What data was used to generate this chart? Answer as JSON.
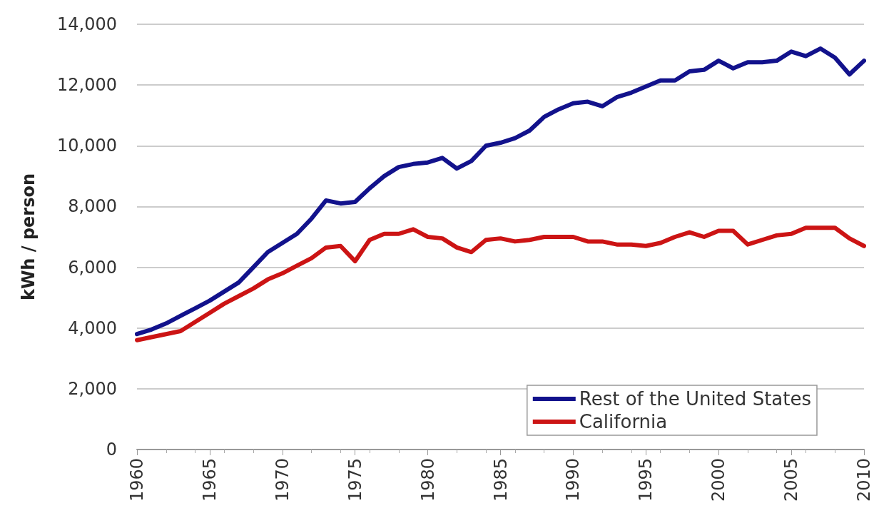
{
  "chart_data": {
    "type": "line",
    "ylabel": "kWh / person",
    "x": [
      1960,
      1961,
      1962,
      1963,
      1964,
      1965,
      1966,
      1967,
      1968,
      1969,
      1970,
      1971,
      1972,
      1973,
      1974,
      1975,
      1976,
      1977,
      1978,
      1979,
      1980,
      1981,
      1982,
      1983,
      1984,
      1985,
      1986,
      1987,
      1988,
      1989,
      1990,
      1991,
      1992,
      1993,
      1994,
      1995,
      1996,
      1997,
      1998,
      1999,
      2000,
      2001,
      2002,
      2003,
      2004,
      2005,
      2006,
      2007,
      2008,
      2009,
      2010
    ],
    "series": [
      {
        "name": "Rest of the United States",
        "color": "#12128c",
        "values": [
          3800,
          3950,
          4150,
          4400,
          4650,
          4900,
          5200,
          5500,
          6000,
          6500,
          6800,
          7100,
          7600,
          8200,
          8100,
          8150,
          8600,
          9000,
          9300,
          9400,
          9450,
          9600,
          9250,
          9500,
          10000,
          10100,
          10250,
          10500,
          10950,
          11200,
          11400,
          11450,
          11300,
          11600,
          11750,
          11950,
          12150,
          12150,
          12450,
          12500,
          12800,
          12550,
          12750,
          12750,
          12800,
          13100,
          12950,
          13200,
          12900,
          12350,
          12800
        ]
      },
      {
        "name": "California",
        "color": "#cc1414",
        "values": [
          3600,
          3700,
          3800,
          3900,
          4200,
          4500,
          4800,
          5050,
          5300,
          5600,
          5800,
          6050,
          6300,
          6650,
          6700,
          6200,
          6900,
          7100,
          7100,
          7250,
          7000,
          6950,
          6650,
          6500,
          6900,
          6950,
          6850,
          6900,
          7000,
          7000,
          7000,
          6850,
          6850,
          6750,
          6750,
          6700,
          6800,
          7000,
          7150,
          7000,
          7200,
          7200,
          6750,
          6900,
          7050,
          7100,
          7300,
          7300,
          7300,
          6950,
          6700
        ]
      }
    ],
    "xlim": [
      1960,
      2010
    ],
    "xticks": [
      1960,
      1965,
      1970,
      1975,
      1980,
      1985,
      1990,
      1995,
      2000,
      2005,
      2010
    ],
    "ylim": [
      0,
      14000
    ],
    "yticks": [
      0,
      {
        "value": 2000,
        "label": "2,000"
      },
      {
        "value": 4000,
        "label": "4,000"
      },
      {
        "value": 6000,
        "label": "6,000"
      },
      {
        "value": 8000,
        "label": "8,000"
      },
      {
        "value": 10000,
        "label": "10,000"
      },
      {
        "value": 12000,
        "label": "12,000"
      },
      {
        "value": 14000,
        "label": "14,000"
      }
    ],
    "grid": "y",
    "legend": "bottom right",
    "marker": "none",
    "line_style": "solid"
  }
}
